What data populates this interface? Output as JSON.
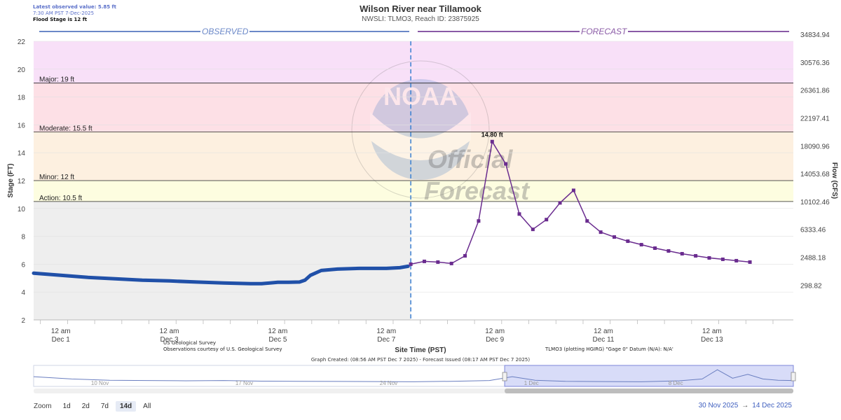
{
  "info": {
    "latest": "Latest observed value: 5.85 ft",
    "time": "7:30 AM PST 7-Dec-2025",
    "flood_stage": "Flood Stage is 12 ft"
  },
  "header": {
    "title": "Wilson River near Tillamook",
    "subtitle": "NWSLI: TLMO3, Reach ID: 23875925"
  },
  "bands": {
    "observed": "OBSERVED",
    "forecast": "FORECAST"
  },
  "watermark": {
    "official": "Official",
    "forecast": "Forecast"
  },
  "notes": {
    "usgs1": "US Geological Survey",
    "usgs2": "Observations courtesy of U.S. Geological Survey",
    "datum": "TLMO3 (plotting HGIRG) \"Gage 0\" Datum (N/A): N/A'",
    "created": "Graph Created: (08:56 AM PST Dec 7 2025) - Forecast Issued (08:17 AM PST Dec 7 2025)"
  },
  "zoom": {
    "label": "Zoom",
    "buttons": [
      "1d",
      "2d",
      "7d",
      "14d",
      "All"
    ],
    "active": "14d"
  },
  "range": {
    "from": "30 Nov 2025",
    "arrow": "→",
    "to": "14 Dec 2025"
  },
  "navigator": {
    "labels": [
      "10 Nov",
      "17 Nov",
      "24 Nov",
      "1 Dec",
      "8 Dec"
    ]
  },
  "colors": {
    "observed": "#2050a8",
    "forecast": "#6a2c8f",
    "major": "#f8e0f8",
    "moderate": "#fde0e6",
    "minor": "#fdf0e0",
    "action": "#fdfde0",
    "observed_bg": "#eeeeee",
    "nav_selection": "#d8dcf8"
  },
  "chart_data": {
    "type": "line",
    "title": "Wilson River near Tillamook",
    "subtitle": "NWSLI: TLMO3, Reach ID: 23875925",
    "xlabel": "Site Time (PST)",
    "ylabel": "Stage (FT)",
    "y2label": "Flow (CFS)",
    "ylim": [
      2,
      22
    ],
    "xlim_days": [
      0,
      13.3
    ],
    "yticks": [
      2,
      4,
      6,
      8,
      10,
      12,
      14,
      16,
      18,
      20,
      22
    ],
    "y2ticks": [
      {
        "stage": 4.5,
        "label": "298.82"
      },
      {
        "stage": 6.5,
        "label": "2488.18"
      },
      {
        "stage": 8.5,
        "label": "6333.46"
      },
      {
        "stage": 10.5,
        "label": "10102.46"
      },
      {
        "stage": 12.5,
        "label": "14053.68"
      },
      {
        "stage": 14.5,
        "label": "18090.96"
      },
      {
        "stage": 16.5,
        "label": "22197.41"
      },
      {
        "stage": 18.5,
        "label": "26361.86"
      },
      {
        "stage": 20.5,
        "label": "30576.36"
      },
      {
        "stage": 22.5,
        "label": "34834.94"
      }
    ],
    "xticks": [
      {
        "day": 0.5,
        "label1": "12 am",
        "label2": "Dec 1"
      },
      {
        "day": 2.5,
        "label1": "12 am",
        "label2": "Dec 3"
      },
      {
        "day": 4.5,
        "label1": "12 am",
        "label2": "Dec 5"
      },
      {
        "day": 6.5,
        "label1": "12 am",
        "label2": "Dec 7"
      },
      {
        "day": 8.5,
        "label1": "12 am",
        "label2": "Dec 9"
      },
      {
        "day": 10.5,
        "label1": "12 am",
        "label2": "Dec 11"
      },
      {
        "day": 12.5,
        "label1": "12 am",
        "label2": "Dec 13"
      }
    ],
    "thresholds": [
      {
        "name": "Major",
        "label": "Major: 19 ft",
        "value": 19
      },
      {
        "name": "Moderate",
        "label": "Moderate: 15.5 ft",
        "value": 15.5
      },
      {
        "name": "Minor",
        "label": "Minor: 12 ft",
        "value": 12
      },
      {
        "name": "Action",
        "label": "Action: 10.5 ft",
        "value": 10.5
      }
    ],
    "now_day": 6.95,
    "peak_label": "14.80 ft",
    "series": [
      {
        "name": "Observed",
        "x": [
          0,
          0.5,
          1,
          1.5,
          2,
          2.5,
          3,
          3.5,
          4,
          4.2,
          4.5,
          4.7,
          4.9,
          5.0,
          5.1,
          5.3,
          5.6,
          6.0,
          6.5,
          6.75,
          6.9
        ],
        "y": [
          5.35,
          5.2,
          5.05,
          4.95,
          4.85,
          4.8,
          4.72,
          4.65,
          4.6,
          4.6,
          4.7,
          4.7,
          4.72,
          4.85,
          5.2,
          5.55,
          5.65,
          5.7,
          5.7,
          5.75,
          5.85
        ]
      },
      {
        "name": "Forecast",
        "x": [
          6.95,
          7.2,
          7.45,
          7.7,
          7.95,
          8.2,
          8.45,
          8.7,
          8.95,
          9.2,
          9.45,
          9.7,
          9.95,
          10.2,
          10.45,
          10.7,
          10.95,
          11.2,
          11.45,
          11.7,
          11.95,
          12.2,
          12.45,
          12.7,
          12.95,
          13.2
        ],
        "y": [
          6.0,
          6.2,
          6.15,
          6.05,
          6.6,
          9.1,
          14.8,
          13.2,
          9.6,
          8.5,
          9.2,
          10.4,
          11.3,
          9.1,
          8.3,
          7.95,
          7.65,
          7.4,
          7.15,
          6.95,
          6.75,
          6.6,
          6.45,
          6.35,
          6.25,
          6.15
        ]
      }
    ],
    "navigator_series": {
      "x": [
        0,
        0.05,
        0.1,
        0.15,
        0.2,
        0.25,
        0.3,
        0.35,
        0.4,
        0.45,
        0.5,
        0.55,
        0.6,
        0.63,
        0.66,
        0.7,
        0.75,
        0.8,
        0.85,
        0.88,
        0.9,
        0.92,
        0.94,
        0.96,
        0.98,
        1.0
      ],
      "y": [
        0.45,
        0.3,
        0.22,
        0.2,
        0.18,
        0.2,
        0.16,
        0.15,
        0.14,
        0.13,
        0.12,
        0.15,
        0.2,
        0.45,
        0.22,
        0.15,
        0.13,
        0.12,
        0.18,
        0.3,
        0.9,
        0.35,
        0.6,
        0.3,
        0.22,
        0.2
      ]
    },
    "navigator_selection": [
      0.62,
      1.0
    ]
  }
}
